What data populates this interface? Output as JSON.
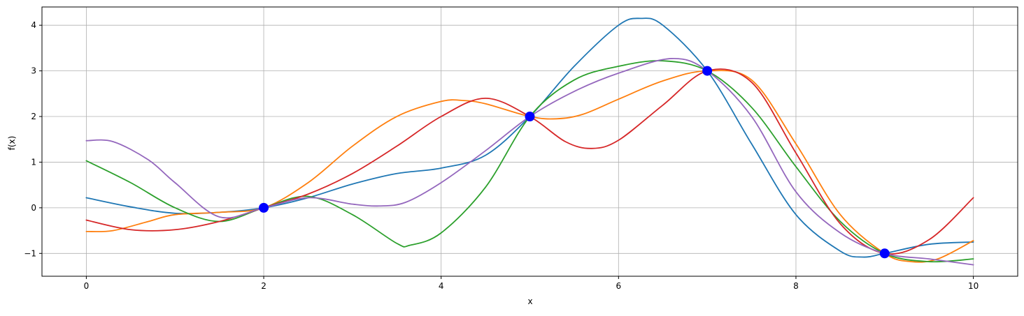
{
  "chart_data": {
    "type": "line",
    "title": "",
    "xlabel": "x",
    "ylabel": "f(x)",
    "xlim": [
      -0.5,
      10.5
    ],
    "ylim": [
      -1.5,
      4.4
    ],
    "xticks": [
      0,
      2,
      4,
      6,
      8,
      10
    ],
    "yticks": [
      -1,
      0,
      1,
      2,
      3,
      4
    ],
    "xtick_labels": [
      "0",
      "2",
      "4",
      "6",
      "8",
      "10"
    ],
    "ytick_labels": [
      "−1",
      "0",
      "1",
      "2",
      "3",
      "4"
    ],
    "grid": true,
    "legend": "none",
    "observations": {
      "color": "#0000ff",
      "points": [
        [
          2,
          0
        ],
        [
          5,
          2
        ],
        [
          7,
          3
        ],
        [
          9,
          -1
        ]
      ]
    },
    "series": [
      {
        "color": "#1f77b4",
        "points": [
          [
            0,
            0.22
          ],
          [
            0.5,
            0.02
          ],
          [
            1,
            -0.12
          ],
          [
            1.5,
            -0.1
          ],
          [
            2,
            0
          ],
          [
            2.5,
            0.22
          ],
          [
            3,
            0.52
          ],
          [
            3.5,
            0.75
          ],
          [
            4,
            0.87
          ],
          [
            4.5,
            1.15
          ],
          [
            5,
            2
          ],
          [
            5.5,
            3.1
          ],
          [
            6,
            4.0
          ],
          [
            6.25,
            4.15
          ],
          [
            6.5,
            4.0
          ],
          [
            7,
            3
          ],
          [
            7.5,
            1.4
          ],
          [
            8,
            -0.15
          ],
          [
            8.5,
            -0.95
          ],
          [
            8.75,
            -1.08
          ],
          [
            9,
            -1
          ],
          [
            9.5,
            -0.8
          ],
          [
            10,
            -0.75
          ]
        ]
      },
      {
        "color": "#ff7f0e",
        "points": [
          [
            0,
            -0.52
          ],
          [
            0.3,
            -0.5
          ],
          [
            0.7,
            -0.3
          ],
          [
            1,
            -0.15
          ],
          [
            1.5,
            -0.1
          ],
          [
            2,
            0
          ],
          [
            2.5,
            0.55
          ],
          [
            3,
            1.35
          ],
          [
            3.5,
            2.0
          ],
          [
            4,
            2.33
          ],
          [
            4.25,
            2.35
          ],
          [
            4.5,
            2.28
          ],
          [
            5,
            2
          ],
          [
            5.3,
            1.95
          ],
          [
            5.6,
            2.05
          ],
          [
            6,
            2.38
          ],
          [
            6.5,
            2.78
          ],
          [
            7,
            3
          ],
          [
            7.5,
            2.8
          ],
          [
            8,
            1.4
          ],
          [
            8.5,
            -0.15
          ],
          [
            9,
            -1
          ],
          [
            9.3,
            -1.18
          ],
          [
            9.6,
            -1.12
          ],
          [
            10,
            -0.72
          ]
        ]
      },
      {
        "color": "#2ca02c",
        "points": [
          [
            0,
            1.03
          ],
          [
            0.5,
            0.55
          ],
          [
            1,
            0.0
          ],
          [
            1.5,
            -0.3
          ],
          [
            2,
            0
          ],
          [
            2.5,
            0.25
          ],
          [
            3,
            -0.15
          ],
          [
            3.5,
            -0.78
          ],
          [
            3.65,
            -0.82
          ],
          [
            4,
            -0.55
          ],
          [
            4.5,
            0.45
          ],
          [
            5,
            2
          ],
          [
            5.5,
            2.8
          ],
          [
            6,
            3.1
          ],
          [
            6.5,
            3.22
          ],
          [
            7,
            3
          ],
          [
            7.5,
            2.2
          ],
          [
            8,
            0.9
          ],
          [
            8.5,
            -0.3
          ],
          [
            9,
            -1
          ],
          [
            9.5,
            -1.18
          ],
          [
            10,
            -1.12
          ]
        ]
      },
      {
        "color": "#d62728",
        "points": [
          [
            0,
            -0.27
          ],
          [
            0.5,
            -0.48
          ],
          [
            1,
            -0.48
          ],
          [
            1.5,
            -0.3
          ],
          [
            2,
            0
          ],
          [
            2.5,
            0.3
          ],
          [
            3,
            0.75
          ],
          [
            3.5,
            1.35
          ],
          [
            4,
            2.0
          ],
          [
            4.5,
            2.4
          ],
          [
            5,
            2
          ],
          [
            5.4,
            1.45
          ],
          [
            5.7,
            1.3
          ],
          [
            6,
            1.48
          ],
          [
            6.5,
            2.25
          ],
          [
            7,
            3
          ],
          [
            7.5,
            2.75
          ],
          [
            8,
            1.2
          ],
          [
            8.5,
            -0.35
          ],
          [
            9,
            -1
          ],
          [
            9.5,
            -0.7
          ],
          [
            10,
            0.22
          ]
        ]
      },
      {
        "color": "#9467bd",
        "points": [
          [
            0,
            1.47
          ],
          [
            0.3,
            1.45
          ],
          [
            0.7,
            1.05
          ],
          [
            1,
            0.55
          ],
          [
            1.5,
            -0.2
          ],
          [
            2,
            0
          ],
          [
            2.5,
            0.22
          ],
          [
            3,
            0.08
          ],
          [
            3.3,
            0.04
          ],
          [
            3.6,
            0.12
          ],
          [
            4,
            0.55
          ],
          [
            4.5,
            1.25
          ],
          [
            5,
            2
          ],
          [
            5.5,
            2.55
          ],
          [
            6,
            2.95
          ],
          [
            6.6,
            3.27
          ],
          [
            7,
            3
          ],
          [
            7.5,
            2.0
          ],
          [
            8,
            0.35
          ],
          [
            8.5,
            -0.55
          ],
          [
            9,
            -1
          ],
          [
            9.5,
            -1.12
          ],
          [
            10,
            -1.25
          ]
        ]
      }
    ]
  }
}
